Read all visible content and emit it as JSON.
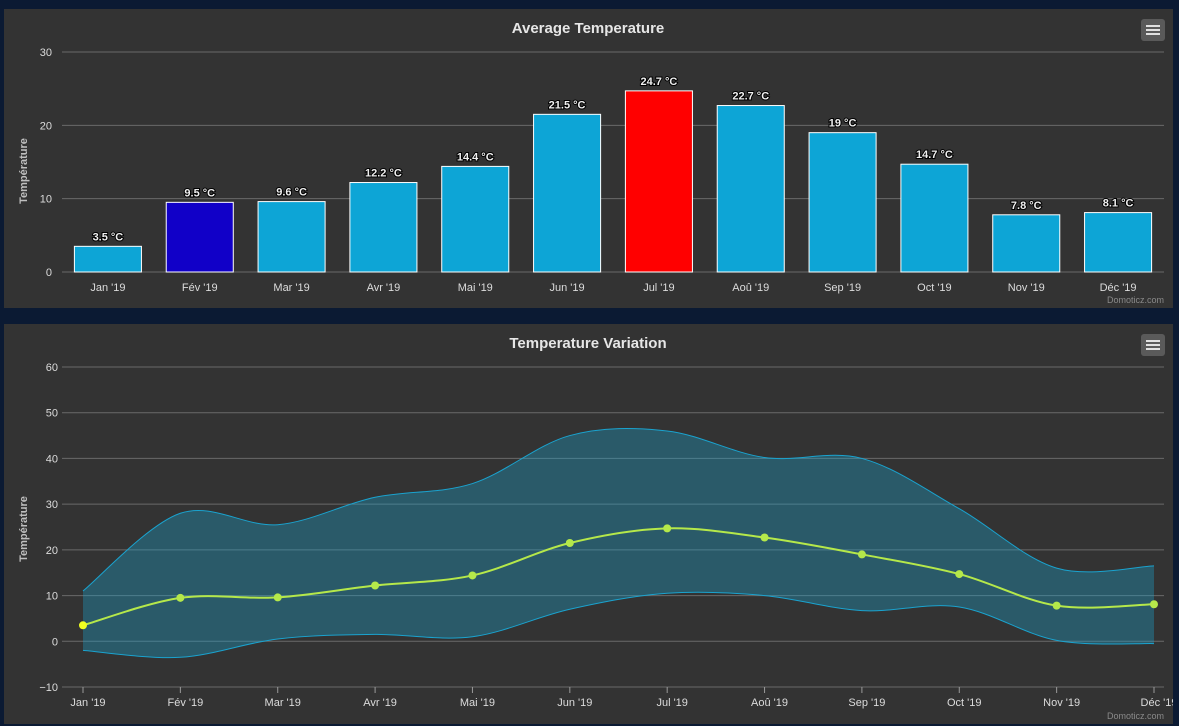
{
  "chart_data": [
    {
      "type": "bar",
      "title": "Average Temperature",
      "ylabel": "Température",
      "credit": "Domoticz.com",
      "ylim": [
        0,
        30
      ],
      "yticks": [
        "0",
        "10",
        "20",
        "30"
      ],
      "categories": [
        "Jan '19",
        "Fév '19",
        "Mar '19",
        "Avr '19",
        "Mai '19",
        "Jun '19",
        "Jul '19",
        "Aoû '19",
        "Sep '19",
        "Oct '19",
        "Nov '19",
        "Déc '19"
      ],
      "values": [
        3.5,
        9.5,
        9.6,
        12.2,
        14.4,
        21.5,
        24.7,
        22.7,
        19,
        14.7,
        7.8,
        8.1
      ],
      "labels": [
        "3.5 °C",
        "9.5 °C",
        "9.6 °C",
        "12.2 °C",
        "14.4 °C",
        "21.5 °C",
        "24.7 °C",
        "22.7 °C",
        "19 °C",
        "14.7 °C",
        "7.8 °C",
        "8.1 °C"
      ],
      "colors": [
        "#0da5d6",
        "#1100c8",
        "#0da5d6",
        "#0da5d6",
        "#0da5d6",
        "#0da5d6",
        "#ff0000",
        "#0da5d6",
        "#0da5d6",
        "#0da5d6",
        "#0da5d6",
        "#0da5d6"
      ],
      "grid": true,
      "legend": "none"
    },
    {
      "type": "area",
      "title": "Temperature Variation",
      "ylabel": "Température",
      "credit": "Domoticz.com",
      "ylim": [
        -10,
        60
      ],
      "yticks": [
        "−10",
        "0",
        "10",
        "20",
        "30",
        "40",
        "50",
        "60"
      ],
      "categories": [
        "Jan '19",
        "Fév '19",
        "Mar '19",
        "Avr '19",
        "Mai '19",
        "Jun '19",
        "Jul '19",
        "Aoû '19",
        "Sep '19",
        "Oct '19",
        "Nov '19",
        "Déc '19"
      ],
      "series": [
        {
          "role": "range",
          "high": [
            11,
            28,
            25.5,
            31.5,
            34.5,
            45,
            46,
            40.2,
            40,
            29,
            16,
            16.5
          ],
          "low": [
            -2,
            -3.5,
            0.5,
            1.5,
            1,
            7,
            10.5,
            10,
            6.7,
            7.5,
            0.2,
            -0.5
          ],
          "color": "#1aa3cf"
        },
        {
          "role": "average",
          "values": [
            3.5,
            9.5,
            9.6,
            12.2,
            14.4,
            21.5,
            24.7,
            22.7,
            19,
            14.7,
            7.8,
            8.1
          ],
          "color": "#b5e84a"
        }
      ],
      "grid": true,
      "legend": "none"
    }
  ]
}
